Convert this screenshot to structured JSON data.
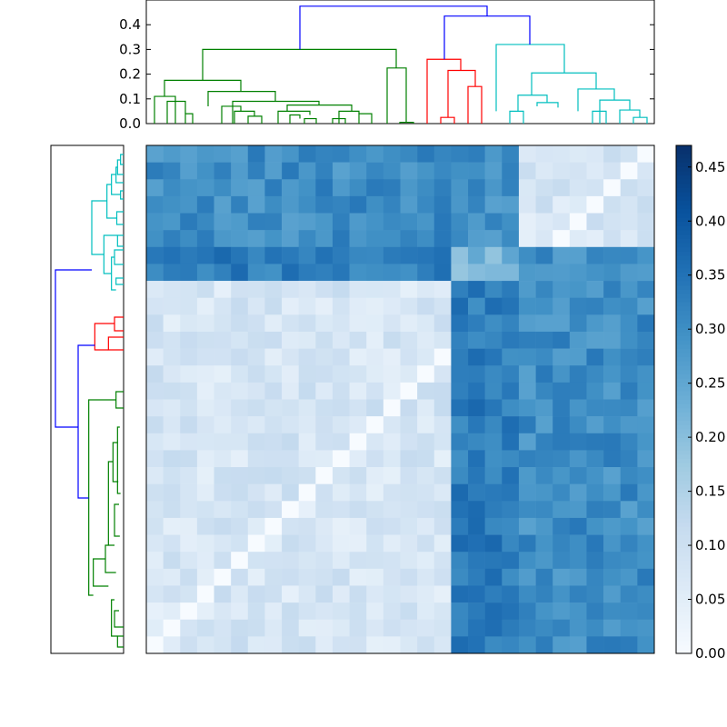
{
  "chart_data": {
    "type": "heatmap",
    "title": "",
    "colormap": "Blues",
    "colors": {
      "cluster_green": "#008000",
      "cluster_red": "#ff0000",
      "cluster_cyan": "#00bfbf",
      "link_blue": "#0000ff"
    },
    "top_dendrogram": {
      "yticks": [
        "0.0",
        "0.1",
        "0.2",
        "0.3",
        "0.4"
      ],
      "ylim": [
        0,
        0.5
      ]
    },
    "colorbar": {
      "ticks": [
        "0.00",
        "0.05",
        "0.10",
        "0.15",
        "0.20",
        "0.25",
        "0.30",
        "0.35",
        "0.40",
        "0.45"
      ],
      "range": [
        0,
        0.47
      ]
    },
    "matrix_size": 30,
    "cluster_order_top": [
      "green",
      "green",
      "green",
      "green",
      "green",
      "green",
      "green",
      "green",
      "green",
      "green",
      "green",
      "green",
      "green",
      "green",
      "green",
      "green",
      "green",
      "green",
      "red",
      "red",
      "red",
      "red",
      "cyan",
      "cyan",
      "cyan",
      "cyan",
      "cyan",
      "cyan",
      "cyan",
      "cyan"
    ],
    "cluster_distances": {
      "within": {
        "green": 0.08,
        "red": 0.22,
        "cyan": 0.08
      },
      "between": {
        "green-red": 0.33,
        "green-cyan": 0.2,
        "red-cyan": 0.35
      }
    }
  }
}
